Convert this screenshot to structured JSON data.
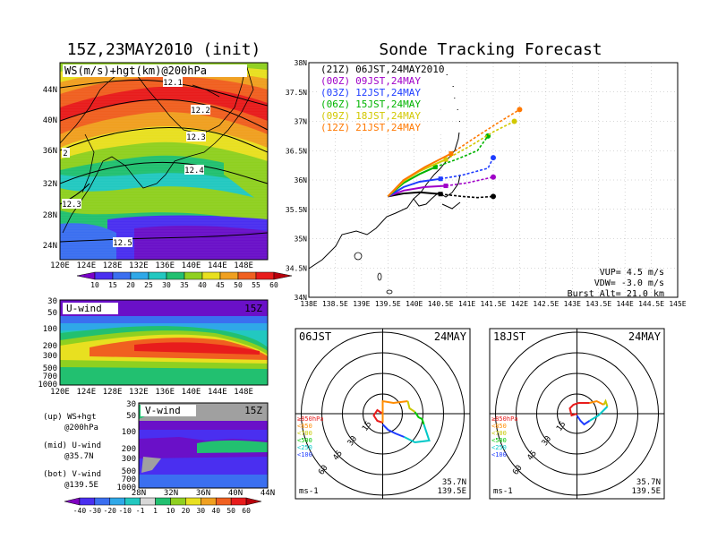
{
  "left_title": "15Z,23MAY2010 (init)",
  "right_title": "Sonde Tracking Forecast",
  "top_map": {
    "label": "WS(m/s)+hgt(km)@200hPa",
    "lat_labels": [
      "44N",
      "40N",
      "36N",
      "32N",
      "28N",
      "24N"
    ],
    "lon_labels": [
      "120E",
      "124E",
      "128E",
      "132E",
      "136E",
      "140E",
      "144E",
      "148E"
    ],
    "contours": [
      "12.1",
      "12.2",
      "12.3",
      "12.4",
      "12.5",
      "12.3",
      "2"
    ],
    "colorbar": [
      "10",
      "15",
      "20",
      "25",
      "30",
      "35",
      "40",
      "45",
      "50",
      "55",
      "60"
    ],
    "colors": [
      "#7a00c8",
      "#4a2ff0",
      "#3b6ff0",
      "#2fa8e8",
      "#22c8c0",
      "#22c070",
      "#8fd020",
      "#e8e020",
      "#f0a020",
      "#f06020",
      "#e81c1c",
      "#b8000c"
    ]
  },
  "u_panel": {
    "label": "U-wind",
    "time": "15Z",
    "p_labels": [
      "30",
      "50",
      "100",
      "200",
      "300",
      "500",
      "700",
      "1000"
    ],
    "lon_labels": [
      "120E",
      "124E",
      "128E",
      "132E",
      "136E",
      "140E",
      "144E",
      "148E"
    ]
  },
  "v_panel": {
    "label": "V-wind",
    "time": "15Z",
    "p_labels": [
      "30",
      "50",
      "100",
      "200",
      "300",
      "500",
      "700",
      "1000"
    ],
    "lat_labels": [
      "28N",
      "32N",
      "36N",
      "40N",
      "44N"
    ]
  },
  "notes": [
    {
      "a": "(up) WS+hgt",
      "b": "@200hPa"
    },
    {
      "a": "(mid) U-wind",
      "b": "@35.7N"
    },
    {
      "a": "(bot) V-wind",
      "b": "@139.5E"
    }
  ],
  "bottom_colorbar": [
    "-40",
    "-30",
    "-20",
    "-10",
    "-1",
    "1",
    "10",
    "20",
    "30",
    "40",
    "50",
    "60"
  ],
  "track_map": {
    "legend": [
      {
        "tag": "(21Z)",
        "txt": "06JST,24MAY2010",
        "color": "#000000"
      },
      {
        "tag": "(00Z)",
        "txt": "09JST,24MAY",
        "color": "#a000c8"
      },
      {
        "tag": "(03Z)",
        "txt": "12JST,24MAY",
        "color": "#1e3cff"
      },
      {
        "tag": "(06Z)",
        "txt": "15JST,24MAY",
        "color": "#00b400"
      },
      {
        "tag": "(09Z)",
        "txt": "18JST,24MAY",
        "color": "#d2c800"
      },
      {
        "tag": "(12Z)",
        "txt": "21JST,24MAY",
        "color": "#ff7800"
      }
    ],
    "lat_labels": [
      "38N",
      "37.5N",
      "37N",
      "36.5N",
      "36N",
      "35.5N",
      "35N",
      "34.5N",
      "34N"
    ],
    "lon_labels": [
      "138E",
      "138.5E",
      "139E",
      "139.5E",
      "140E",
      "140.5E",
      "141E",
      "141.5E",
      "142E",
      "142.5E",
      "143E",
      "143.5E",
      "144E",
      "144.5E",
      "145E"
    ],
    "vup": "VUP= 4.5 m/s",
    "vdw": "VDW= -3.0 m/s",
    "burst": "Burst Alt= 21.0 km"
  },
  "chart_data": {
    "type": "line",
    "title": "Sonde Tracking Forecast",
    "xlim": [
      138,
      145
    ],
    "ylim": [
      34,
      38
    ],
    "launch": [
      139.5,
      35.7
    ],
    "series": [
      {
        "name": "(21Z) 06JST,24MAY2010",
        "x": [
          139.5,
          139.8,
          140.1,
          140.5,
          140.9,
          141.2,
          141.5
        ],
        "y": [
          35.72,
          35.77,
          35.79,
          35.76,
          35.72,
          35.7,
          35.72
        ]
      },
      {
        "name": "(00Z) 09JST,24MAY",
        "x": [
          139.5,
          139.8,
          140.2,
          140.6,
          141.0,
          141.5
        ],
        "y": [
          35.72,
          35.82,
          35.88,
          35.9,
          35.95,
          36.05
        ]
      },
      {
        "name": "(03Z) 12JST,24MAY",
        "x": [
          139.5,
          139.8,
          140.1,
          140.5,
          140.9,
          141.4,
          141.5
        ],
        "y": [
          35.72,
          35.88,
          35.97,
          36.02,
          36.08,
          36.2,
          36.38
        ]
      },
      {
        "name": "(06Z) 15JST,24MAY",
        "x": [
          139.5,
          139.8,
          140.1,
          140.4,
          140.8,
          141.2,
          141.4
        ],
        "y": [
          35.72,
          35.95,
          36.1,
          36.22,
          36.35,
          36.5,
          36.75
        ]
      },
      {
        "name": "(09Z) 18JST,24MAY",
        "x": [
          139.5,
          139.8,
          140.1,
          140.6,
          141.1,
          141.5,
          141.9
        ],
        "y": [
          35.72,
          35.98,
          36.15,
          36.35,
          36.6,
          36.82,
          37.0
        ]
      },
      {
        "name": "(12Z) 21JST,24MAY",
        "x": [
          139.5,
          139.8,
          140.2,
          140.7,
          141.2,
          141.6,
          142.0
        ],
        "y": [
          35.72,
          36.0,
          36.22,
          36.45,
          36.75,
          36.98,
          37.2
        ]
      }
    ]
  },
  "polar_left": {
    "time": "06JST",
    "date": "24MAY",
    "lat": "35.7N",
    "lon": "139.5E",
    "unit": "ms-1",
    "rings": [
      "15",
      "30",
      "45",
      "60"
    ],
    "legend": [
      {
        "t": "≥850hPa",
        "c": "#e81c1c"
      },
      {
        "t": "<850",
        "c": "#ff8c00"
      },
      {
        "t": "<700",
        "c": "#c8c800"
      },
      {
        "t": "<500",
        "c": "#00c800"
      },
      {
        "t": "<250",
        "c": "#00c8c8"
      },
      {
        "t": "<100",
        "c": "#1e3cff"
      }
    ]
  },
  "polar_right": {
    "time": "18JST",
    "date": "24MAY",
    "lat": "35.7N",
    "lon": "139.5E",
    "unit": "ms-1",
    "rings": [
      "15",
      "30",
      "45",
      "60"
    ],
    "legend": [
      {
        "t": "≥850hPa",
        "c": "#e81c1c"
      },
      {
        "t": "<850",
        "c": "#ff8c00"
      },
      {
        "t": "<700",
        "c": "#c8c800"
      },
      {
        "t": "<500",
        "c": "#00c800"
      },
      {
        "t": "<250",
        "c": "#00c8c8"
      },
      {
        "t": "<100",
        "c": "#1e3cff"
      }
    ]
  }
}
